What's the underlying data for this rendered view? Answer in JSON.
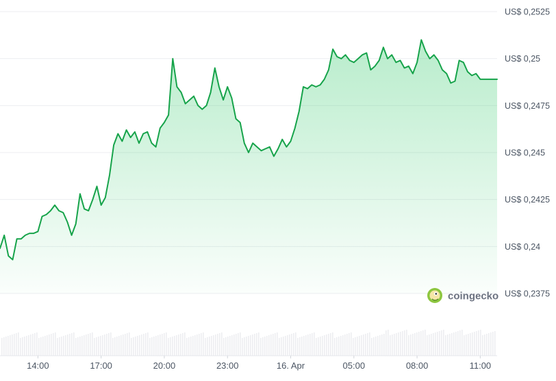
{
  "watermark": {
    "text": "coingecko",
    "icon": "coingecko-gecko-icon"
  },
  "chart_data": {
    "type": "area",
    "currency_prefix": "US$",
    "y_ticks": [
      "US$ 0,2525",
      "US$ 0,25",
      "US$ 0,2475",
      "US$ 0,245",
      "US$ 0,2425",
      "US$ 0,24",
      "US$ 0,2375"
    ],
    "y_tick_values": [
      0.2525,
      0.25,
      0.2475,
      0.245,
      0.2425,
      0.24,
      0.2375
    ],
    "ylim": [
      0.2375,
      0.2525
    ],
    "x_ticks": [
      "14:00",
      "17:00",
      "20:00",
      "23:00",
      "16. Apr",
      "05:00",
      "08:00",
      "11:00"
    ],
    "x_tick_hours": [
      14,
      17,
      20,
      23,
      26,
      29,
      32,
      35
    ],
    "xlim_hours": [
      12.2,
      35.8
    ],
    "grid": true,
    "line_color": "#16a34a",
    "fill_color": "#22c55e",
    "volume_bar_color": "#e5e7eb",
    "series": [
      {
        "x_hours": [
          12.2,
          12.4,
          12.6,
          12.8,
          13.0,
          13.2,
          13.4,
          13.6,
          13.8,
          14.0,
          14.2,
          14.4,
          14.6,
          14.8,
          15.0,
          15.2,
          15.4,
          15.6,
          15.8,
          16.0,
          16.2,
          16.4,
          16.6,
          16.8,
          17.0,
          17.2,
          17.4,
          17.6,
          17.8,
          18.0,
          18.2,
          18.4,
          18.6,
          18.8,
          19.0,
          19.2,
          19.4,
          19.6,
          19.8,
          20.0,
          20.2,
          20.4,
          20.6,
          20.8,
          21.0,
          21.2,
          21.4,
          21.6,
          21.8,
          22.0,
          22.2,
          22.4,
          22.6,
          22.8,
          23.0,
          23.2,
          23.4,
          23.6,
          23.8,
          24.0,
          24.2,
          24.4,
          24.6,
          24.8,
          25.0,
          25.2,
          25.4,
          25.6,
          25.8,
          26.0,
          26.2,
          26.4,
          26.6,
          26.8,
          27.0,
          27.2,
          27.4,
          27.6,
          27.8,
          28.0,
          28.2,
          28.4,
          28.6,
          28.8,
          29.0,
          29.2,
          29.4,
          29.6,
          29.8,
          30.0,
          30.2,
          30.4,
          30.6,
          30.8,
          31.0,
          31.2,
          31.4,
          31.6,
          31.8,
          32.0,
          32.2,
          32.4,
          32.6,
          32.8,
          33.0,
          33.2,
          33.4,
          33.6,
          33.8,
          34.0,
          34.2,
          34.4,
          34.6,
          34.8,
          35.0,
          35.2,
          35.4,
          35.6,
          35.8
        ],
        "values": [
          0.2399,
          0.2406,
          0.2395,
          0.2393,
          0.2404,
          0.2404,
          0.2406,
          0.2407,
          0.2407,
          0.2408,
          0.2416,
          0.2417,
          0.2419,
          0.2422,
          0.2419,
          0.2418,
          0.2413,
          0.2406,
          0.2412,
          0.2428,
          0.242,
          0.2419,
          0.2425,
          0.2432,
          0.2422,
          0.2426,
          0.2438,
          0.2454,
          0.246,
          0.2456,
          0.2462,
          0.2458,
          0.2461,
          0.2455,
          0.246,
          0.2461,
          0.2455,
          0.2453,
          0.2463,
          0.2466,
          0.247,
          0.25,
          0.2485,
          0.2482,
          0.2476,
          0.2478,
          0.248,
          0.2475,
          0.2473,
          0.2475,
          0.2482,
          0.2495,
          0.2485,
          0.2478,
          0.2485,
          0.2479,
          0.2468,
          0.2466,
          0.2455,
          0.245,
          0.2455,
          0.2453,
          0.2451,
          0.2452,
          0.2453,
          0.2448,
          0.2452,
          0.2457,
          0.2453,
          0.2456,
          0.2463,
          0.2472,
          0.2485,
          0.2484,
          0.2486,
          0.2485,
          0.2486,
          0.2489,
          0.2494,
          0.2505,
          0.2501,
          0.25,
          0.2502,
          0.2499,
          0.2498,
          0.25,
          0.2502,
          0.2503,
          0.2494,
          0.2496,
          0.2499,
          0.2506,
          0.25,
          0.2502,
          0.2498,
          0.2499,
          0.2495,
          0.2496,
          0.2492,
          0.2498,
          0.251,
          0.2504,
          0.25,
          0.2502,
          0.2499,
          0.2494,
          0.2492,
          0.2487,
          0.2488,
          0.2499,
          0.2498,
          0.2493,
          0.2491,
          0.2492,
          0.2489,
          0.2489,
          0.2489,
          0.2489,
          0.2489
        ]
      }
    ]
  }
}
